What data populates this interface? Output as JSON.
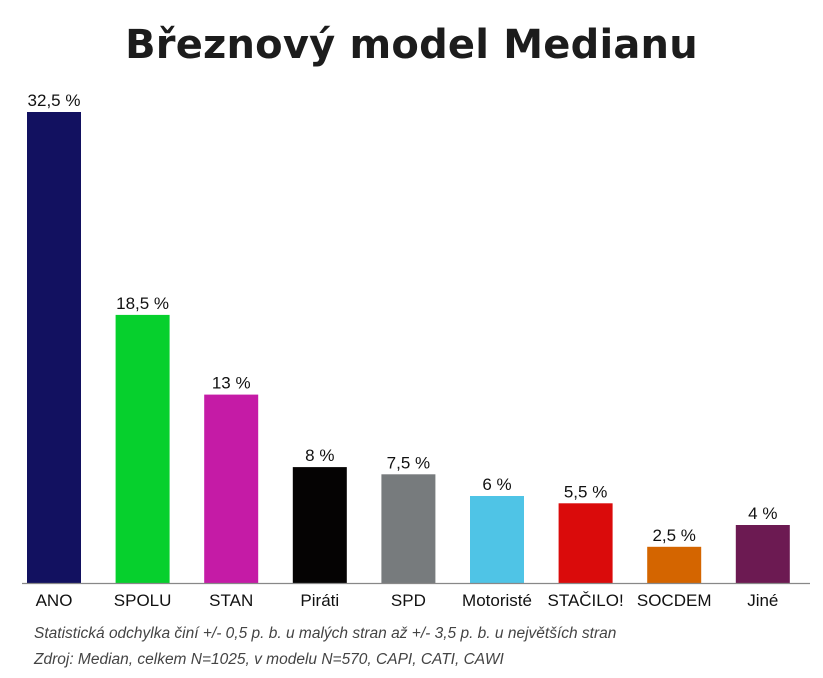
{
  "chart_data": {
    "type": "bar",
    "title": "Březnový model Medianu",
    "categories": [
      "ANO",
      "SPOLU",
      "STAN",
      "Piráti",
      "SPD",
      "Motoristé",
      "STAČILO!",
      "SOCDEM",
      "Jiné"
    ],
    "values": [
      32.5,
      18.5,
      13,
      8,
      7.5,
      6,
      5.5,
      2.5,
      4
    ],
    "value_labels": [
      "32,5 %",
      "18,5 %",
      "13 %",
      "8 %",
      "7,5 %",
      "6 %",
      "5,5 %",
      "2,5 %",
      "4 %"
    ],
    "colors": [
      "#121160",
      "#06d02d",
      "#c51ba6",
      "#050303",
      "#777b7d",
      "#4fc4e6",
      "#da0b0b",
      "#d46500",
      "#6c1a52"
    ],
    "xlabel": "",
    "ylabel": "",
    "ylim": [
      0,
      32.5
    ],
    "grid": false,
    "legend": "none"
  },
  "notes": {
    "line1": "Statistická odchylka činí +/- 0,5 p. b. u malých stran až +/- 3,5 p. b. u největších stran",
    "line2": "Zdroj: Median, celkem N=1025, v modelu N=570, CAPI, CATI, CAWI"
  }
}
